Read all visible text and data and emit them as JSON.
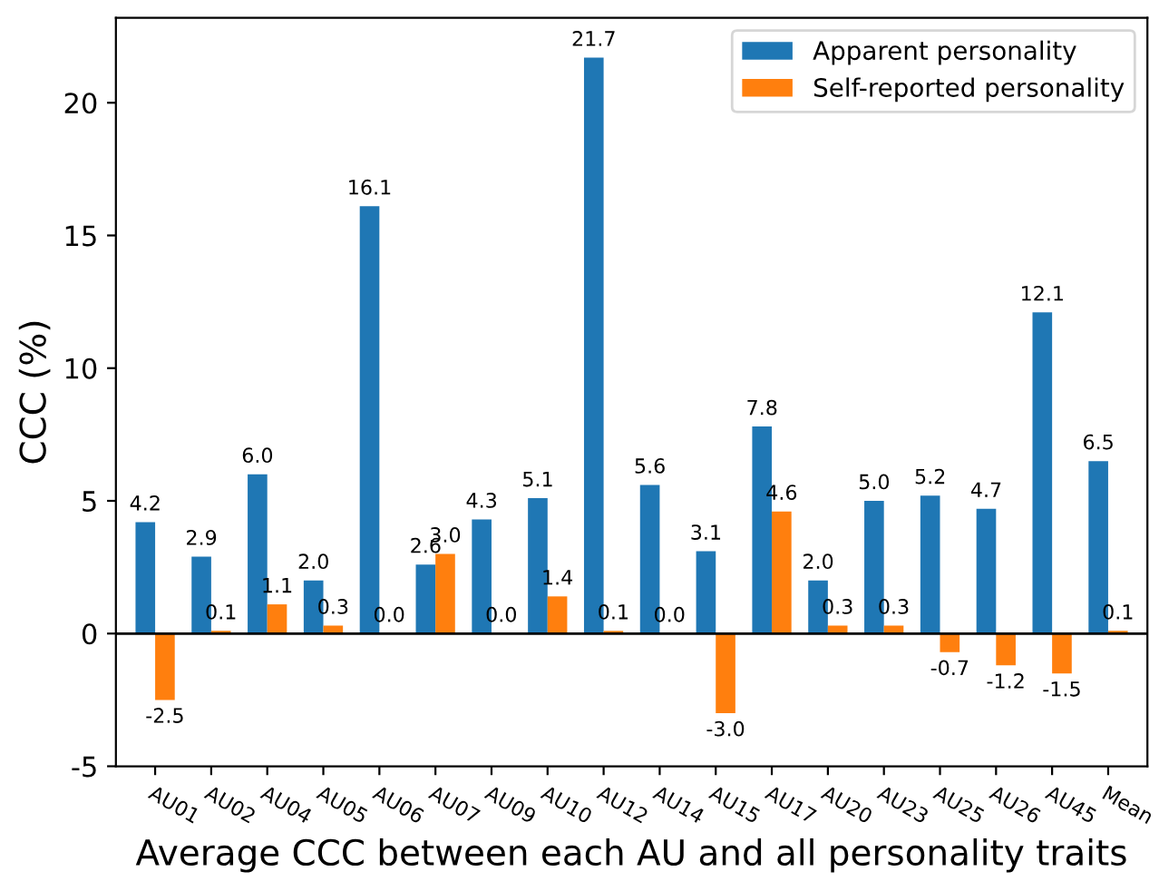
{
  "chart_data": {
    "type": "bar",
    "xlabel": "Average CCC between each AU and all personality traits",
    "ylabel": "CCC (%)",
    "categories": [
      "AU01",
      "AU02",
      "AU04",
      "AU05",
      "AU06",
      "AU07",
      "AU09",
      "AU10",
      "AU12",
      "AU14",
      "AU15",
      "AU17",
      "AU20",
      "AU23",
      "AU25",
      "AU26",
      "AU45",
      "Mean"
    ],
    "series": [
      {
        "name": "Apparent personality",
        "color": "#1f77b4",
        "values": [
          4.2,
          2.9,
          6.0,
          2.0,
          16.1,
          2.6,
          4.3,
          5.1,
          21.7,
          5.6,
          3.1,
          7.8,
          2.0,
          5.0,
          5.2,
          4.7,
          12.1,
          6.5
        ],
        "value_labels": [
          "4.2",
          "2.9",
          "6.0",
          "2.0",
          "16.1",
          "2.6",
          "4.3",
          "5.1",
          "21.7",
          "5.6",
          "3.1",
          "7.8",
          "2.0",
          "5.0",
          "5.2",
          "4.7",
          "12.1",
          "6.5"
        ]
      },
      {
        "name": "Self-reported personality",
        "color": "#ff7f0e",
        "values": [
          -2.5,
          0.1,
          1.1,
          0.3,
          0.0,
          3.0,
          0.0,
          1.4,
          0.1,
          0.0,
          -3.0,
          4.6,
          0.3,
          0.3,
          -0.7,
          -1.2,
          -1.5,
          0.1
        ],
        "value_labels": [
          "-2.5",
          "0.1",
          "1.1",
          "0.3",
          "0.0",
          "3.0",
          "0.0",
          "1.4",
          "0.1",
          "0.0",
          "-3.0",
          "4.6",
          "0.3",
          "0.3",
          "-0.7",
          "-1.2",
          "-1.5",
          "0.1"
        ]
      }
    ],
    "ylim": [
      -5,
      23.2
    ],
    "yticks": [
      -5,
      0,
      5,
      10,
      15,
      20
    ],
    "ref_lines": [
      {
        "axis": "y",
        "value": 0,
        "color": "#000000"
      }
    ],
    "legend": "top right",
    "grid": false
  }
}
